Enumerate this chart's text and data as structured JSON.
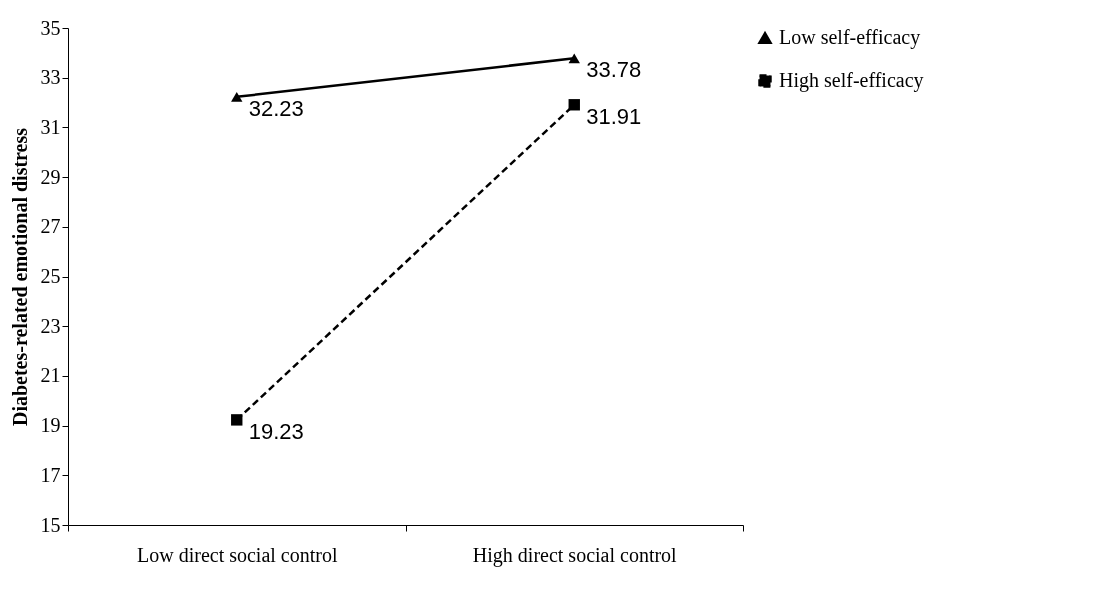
{
  "chart_data": {
    "type": "line",
    "ylabel": "Diabetes-related emotional distress",
    "categories": [
      "Low direct social control",
      "High direct social control"
    ],
    "series": [
      {
        "name": "Low self-efficacy",
        "color": "#000000",
        "values": [
          32.23,
          33.78
        ],
        "marker": "triangle",
        "line_style": "solid"
      },
      {
        "name": "High self-efficacy",
        "color": "#000000",
        "values": [
          19.23,
          31.91
        ],
        "marker": "square",
        "line_style": "dashed"
      }
    ],
    "ylim": [
      15,
      35
    ],
    "yticks": [
      15,
      17,
      19,
      21,
      23,
      25,
      27,
      29,
      31,
      33,
      35
    ],
    "grid": false,
    "legend": "right",
    "data_labels": true
  }
}
